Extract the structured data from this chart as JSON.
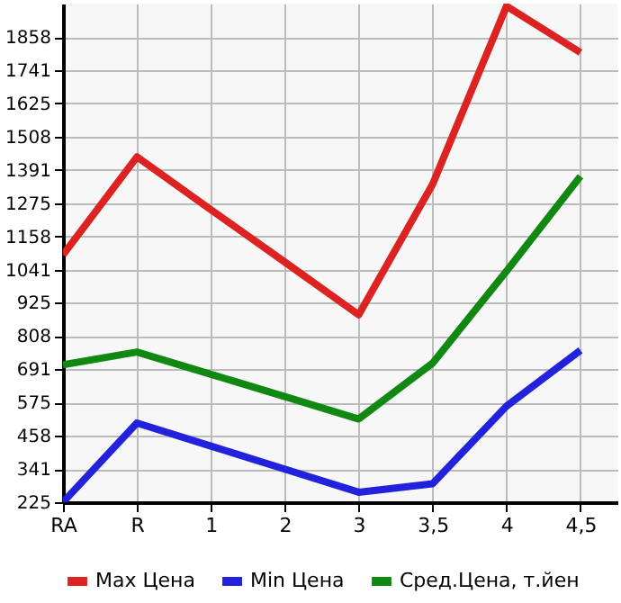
{
  "chart_data": {
    "type": "line",
    "categories": [
      "RA",
      "R",
      "1",
      "2",
      "3",
      "3,5",
      "4",
      "4,5"
    ],
    "ylim": [
      225,
      1975
    ],
    "yticks": [
      225,
      341,
      458,
      575,
      691,
      808,
      925,
      1041,
      1158,
      1275,
      1391,
      1508,
      1625,
      1741,
      1858
    ],
    "series": [
      {
        "name": "Max Цена",
        "color": "#dd2222",
        "values": [
          1093,
          1437,
          1252,
          1068,
          883,
          1341,
          1966,
          1803
        ]
      },
      {
        "name": "Min Цена",
        "color": "#2222dd",
        "values": [
          225,
          503,
          422,
          341,
          260,
          290,
          562,
          758
        ]
      },
      {
        "name": "Сред.Цена, т.йен",
        "color": "#118811",
        "values": [
          707,
          752,
          674,
          596,
          517,
          713,
          1036,
          1369
        ]
      }
    ],
    "grid": true,
    "legend": "bottom",
    "marker": "none",
    "line_style": "solid"
  }
}
